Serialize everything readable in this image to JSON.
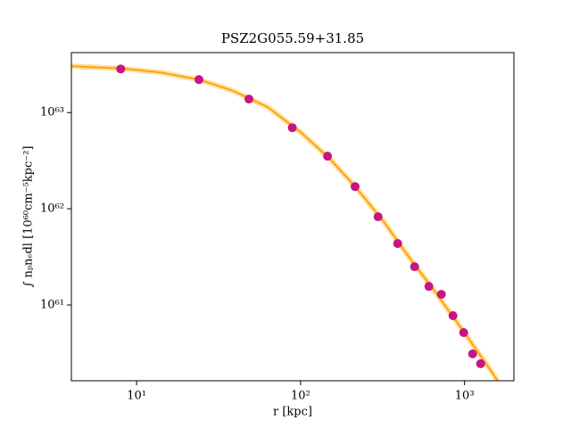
{
  "chart_data": {
    "type": "scatter",
    "title": "PSZ2G055.59+31.85",
    "x_label": "r [kpc]",
    "y_label": "∫ nₚnₑdl [10⁶⁰cm⁻⁵kpc⁻²]",
    "x": [
      8.0,
      24,
      48.4,
      89,
      146,
      215,
      297,
      391,
      496,
      606,
      722,
      850,
      988,
      1120,
      1253
    ],
    "values": [
      2.84e+63,
      2.2e+63,
      1.38e+63,
      6.96e+62,
      3.52e+62,
      1.7e+62,
      8.26e+61,
      4.35e+61,
      2.5e+61,
      1.56e+61,
      1.29e+61,
      7.74e+60,
      5.16e+60,
      3.1e+60,
      2.45e+60
    ],
    "color": "#c71585",
    "fit": {
      "type": "line",
      "color": "#ffa500",
      "x": [
        4.0,
        8.0,
        14.0,
        24,
        38.2,
        63.0,
        100,
        151,
        220,
        320,
        466,
        679,
        988,
        1438,
        1588
      ],
      "values": [
        3.03e+63,
        2.88e+63,
        2.61e+63,
        2.2e+63,
        1.7e+63,
        1.14e+63,
        6.26e+62,
        3.3e+62,
        1.63e+62,
        7.42e+61,
        3.03e+61,
        1.29e+61,
        5.28e+60,
        2.11e+60,
        1.63e+60
      ]
    },
    "xlim": [
      4,
      2000
    ],
    "ylim": [
      1.63e+60,
      4.2e+63
    ],
    "xlog": true,
    "ylog": true,
    "xticks": [
      {
        "value": 10,
        "label": "10¹"
      },
      {
        "value": 100,
        "label": "10²"
      },
      {
        "value": 1000,
        "label": "10³"
      }
    ],
    "yticks": [
      {
        "value": 1e+61,
        "label": "10⁶¹"
      },
      {
        "value": 1e+62,
        "label": "10⁶²"
      },
      {
        "value": 1e+63,
        "label": "10⁶³"
      }
    ],
    "grid": false
  }
}
